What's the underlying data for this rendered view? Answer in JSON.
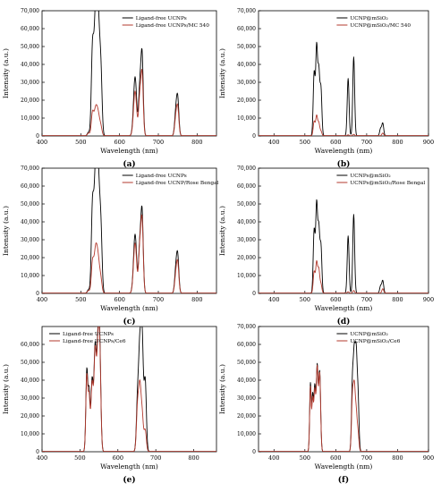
{
  "chart_data": [
    {
      "panel": "(a)",
      "type": "line",
      "xlabel": "Wavelength (nm)",
      "ylabel": "Intensity (a.u.)",
      "xlim": [
        400,
        850
      ],
      "ylim": [
        0,
        70000
      ],
      "xticks": [
        400,
        500,
        600,
        700,
        800
      ],
      "yticks": [
        0,
        10000,
        20000,
        30000,
        40000,
        50000,
        60000,
        70000
      ],
      "ytick_labels": [
        "0",
        "10,000",
        "20,000",
        "30,000",
        "40,000",
        "50,000",
        "60,000",
        "70,000"
      ],
      "legend_position": "top-right",
      "series": [
        {
          "name": "Ligand-free UCNPs",
          "color": "#000000",
          "peaks": [
            [
              520,
              2000,
              3
            ],
            [
              530,
              45000,
              3
            ],
            [
              538,
              64000,
              4
            ],
            [
              545,
              60000,
              4
            ],
            [
              552,
              30000,
              3
            ],
            [
              640,
              33000,
              4
            ],
            [
              652,
              25000,
              3
            ],
            [
              658,
              45000,
              3
            ],
            [
              745,
              12000,
              3
            ],
            [
              750,
              20000,
              3
            ]
          ]
        },
        {
          "name": "Ligand-free UCNPs/MC 540",
          "color": "#b33a2e",
          "peaks": [
            [
              520,
              1500,
              3
            ],
            [
              530,
              12000,
              3
            ],
            [
              538,
              14000,
              4
            ],
            [
              545,
              11000,
              4
            ],
            [
              552,
              4000,
              3
            ],
            [
              640,
              25000,
              4
            ],
            [
              652,
              20000,
              3
            ],
            [
              658,
              34000,
              3
            ],
            [
              745,
              9000,
              3
            ],
            [
              750,
              15000,
              3
            ]
          ]
        }
      ]
    },
    {
      "panel": "(b)",
      "type": "line",
      "xlabel": "Wavelength (nm)",
      "ylabel": "Intensity (a.u.)",
      "xlim": [
        350,
        900
      ],
      "ylim": [
        0,
        70000
      ],
      "xticks": [
        400,
        500,
        600,
        700,
        800,
        900
      ],
      "yticks": [
        0,
        10000,
        20000,
        30000,
        40000,
        50000,
        60000,
        70000
      ],
      "ytick_labels": [
        "0",
        "10,000",
        "20,000",
        "30,000",
        "40,000",
        "50,000",
        "60,000",
        "70,000"
      ],
      "legend_position": "top-right",
      "series": [
        {
          "name": "UCNP@mSiO₂",
          "color": "#000000",
          "peaks": [
            [
              530,
              35000,
              3
            ],
            [
              538,
              49000,
              3
            ],
            [
              545,
              35000,
              3
            ],
            [
              552,
              26000,
              3
            ],
            [
              640,
              32000,
              3
            ],
            [
              658,
              44000,
              3
            ],
            [
              745,
              4000,
              3
            ],
            [
              752,
              7000,
              3
            ]
          ]
        },
        {
          "name": "UCNP@mSiO₂/MC 540",
          "color": "#b33a2e",
          "peaks": [
            [
              530,
              8000,
              3
            ],
            [
              538,
              11000,
              3
            ],
            [
              545,
              7000,
              3
            ],
            [
              552,
              2500,
              3
            ],
            [
              640,
              500,
              3
            ],
            [
              658,
              800,
              3
            ],
            [
              752,
              1500,
              3
            ]
          ]
        }
      ]
    },
    {
      "panel": "(c)",
      "type": "line",
      "xlabel": "Wavelength (nm)",
      "ylabel": "Intensity (a.u.)",
      "xlim": [
        400,
        850
      ],
      "ylim": [
        0,
        70000
      ],
      "xticks": [
        400,
        500,
        600,
        700,
        800
      ],
      "yticks": [
        0,
        10000,
        20000,
        30000,
        40000,
        50000,
        60000,
        70000
      ],
      "ytick_labels": [
        "0",
        "10,000",
        "20,000",
        "30,000",
        "40,000",
        "50,000",
        "60,000",
        "70,000"
      ],
      "legend_position": "top-right",
      "series": [
        {
          "name": "Ligand-free UCNPs",
          "color": "#000000",
          "peaks": [
            [
              520,
              2000,
              3
            ],
            [
              530,
              45000,
              3
            ],
            [
              538,
              64000,
              4
            ],
            [
              545,
              60000,
              4
            ],
            [
              552,
              30000,
              3
            ],
            [
              640,
              33000,
              4
            ],
            [
              652,
              25000,
              3
            ],
            [
              658,
              45000,
              3
            ],
            [
              745,
              12000,
              3
            ],
            [
              750,
              20000,
              3
            ]
          ]
        },
        {
          "name": "Ligand-free UCNP/Rose Bengal",
          "color": "#b33a2e",
          "peaks": [
            [
              520,
              1500,
              3
            ],
            [
              530,
              16000,
              3
            ],
            [
              538,
              23000,
              4
            ],
            [
              545,
              17000,
              4
            ],
            [
              552,
              6000,
              3
            ],
            [
              640,
              28000,
              4
            ],
            [
              652,
              24000,
              3
            ],
            [
              658,
              40000,
              3
            ],
            [
              745,
              9000,
              3
            ],
            [
              750,
              16000,
              3
            ]
          ]
        }
      ]
    },
    {
      "panel": "(d)",
      "type": "line",
      "xlabel": "Wavelength (nm)",
      "ylabel": "Intensity (a.u.)",
      "xlim": [
        350,
        900
      ],
      "ylim": [
        0,
        70000
      ],
      "xticks": [
        400,
        500,
        600,
        700,
        800,
        900
      ],
      "yticks": [
        0,
        10000,
        20000,
        30000,
        40000,
        50000,
        60000,
        70000
      ],
      "ytick_labels": [
        "0",
        "10,000",
        "20,000",
        "30,000",
        "40,000",
        "50,000",
        "60,000",
        "70,000"
      ],
      "legend_position": "top-right",
      "series": [
        {
          "name": "UCNPs@mSiO₂",
          "color": "#000000",
          "peaks": [
            [
              530,
              35000,
              3
            ],
            [
              538,
              49000,
              3
            ],
            [
              545,
              35000,
              3
            ],
            [
              552,
              26000,
              3
            ],
            [
              640,
              32000,
              3
            ],
            [
              658,
              44000,
              3
            ],
            [
              745,
              4000,
              3
            ],
            [
              752,
              7000,
              3
            ]
          ]
        },
        {
          "name": "UCNPs@mSiO₂/Rose Bengal",
          "color": "#b33a2e",
          "peaks": [
            [
              530,
              12000,
              3
            ],
            [
              538,
              17000,
              3
            ],
            [
              545,
              13000,
              3
            ],
            [
              552,
              5000,
              3
            ],
            [
              640,
              800,
              3
            ],
            [
              658,
              1500,
              3
            ],
            [
              752,
              2500,
              3
            ]
          ]
        }
      ]
    },
    {
      "panel": "(e)",
      "type": "line",
      "xlabel": "Wavelength (nm)",
      "ylabel": "Intensity (a.u.)",
      "xlim": [
        400,
        860
      ],
      "ylim": [
        0,
        70000
      ],
      "xticks": [
        400,
        500,
        600,
        700,
        800
      ],
      "yticks": [
        0,
        10000,
        20000,
        30000,
        40000,
        50000,
        60000
      ],
      "ytick_labels": [
        "0",
        "10,000",
        "20,000",
        "30,000",
        "40,000",
        "50,000",
        "60,000"
      ],
      "legend_position": "top-left",
      "series": [
        {
          "name": "Ligand-free UCNPs",
          "color": "#000000",
          "peaks": [
            [
              518,
              45000,
              2.5
            ],
            [
              524,
              33000,
              2.5
            ],
            [
              532,
              40000,
              3
            ],
            [
              540,
              57000,
              3
            ],
            [
              547,
              50000,
              3
            ],
            [
              552,
              57000,
              3
            ],
            [
              652,
              30000,
              3
            ],
            [
              658,
              55000,
              3
            ],
            [
              664,
              62000,
              3
            ],
            [
              672,
              40000,
              3
            ]
          ]
        },
        {
          "name": "Ligand-free UCNPs/Ce6",
          "color": "#b33a2e",
          "peaks": [
            [
              518,
              42000,
              2.5
            ],
            [
              524,
              30000,
              2.5
            ],
            [
              532,
              38000,
              3
            ],
            [
              540,
              55000,
              3
            ],
            [
              547,
              48000,
              3
            ],
            [
              552,
              54000,
              3
            ],
            [
              652,
              25000,
              3
            ],
            [
              658,
              34000,
              3
            ],
            [
              664,
              20000,
              3
            ],
            [
              672,
              12000,
              3
            ]
          ]
        }
      ]
    },
    {
      "panel": "(f)",
      "type": "line",
      "xlabel": "Wavelength (nm)",
      "ylabel": "Intensity (a.u.)",
      "xlim": [
        350,
        900
      ],
      "ylim": [
        0,
        70000
      ],
      "xticks": [
        400,
        500,
        600,
        700,
        800,
        900
      ],
      "yticks": [
        0,
        10000,
        20000,
        30000,
        40000,
        50000,
        60000,
        70000
      ],
      "ytick_labels": [
        "0",
        "10,000",
        "20,000",
        "30,000",
        "40,000",
        "50,000",
        "60,000",
        "70,000"
      ],
      "legend_position": "top-right",
      "series": [
        {
          "name": "UCNP@mSiO₂",
          "color": "#000000",
          "peaks": [
            [
              518,
              38000,
              2.5
            ],
            [
              525,
              30000,
              2.5
            ],
            [
              532,
              36000,
              3
            ],
            [
              540,
              47000,
              3
            ],
            [
              548,
              44000,
              3
            ],
            [
              654,
              38000,
              3
            ],
            [
              660,
              49000,
              3
            ],
            [
              666,
              50000,
              3
            ],
            [
              672,
              30000,
              3
            ]
          ]
        },
        {
          "name": "UCNP@mSiO₂/Ce6",
          "color": "#b33a2e",
          "peaks": [
            [
              518,
              36000,
              2.5
            ],
            [
              525,
              28000,
              2.5
            ],
            [
              532,
              34000,
              3
            ],
            [
              540,
              46000,
              3
            ],
            [
              548,
              43000,
              3
            ],
            [
              654,
              30000,
              3
            ],
            [
              660,
              33000,
              3
            ],
            [
              666,
              20000,
              3
            ],
            [
              672,
              10000,
              3
            ]
          ]
        }
      ]
    }
  ]
}
